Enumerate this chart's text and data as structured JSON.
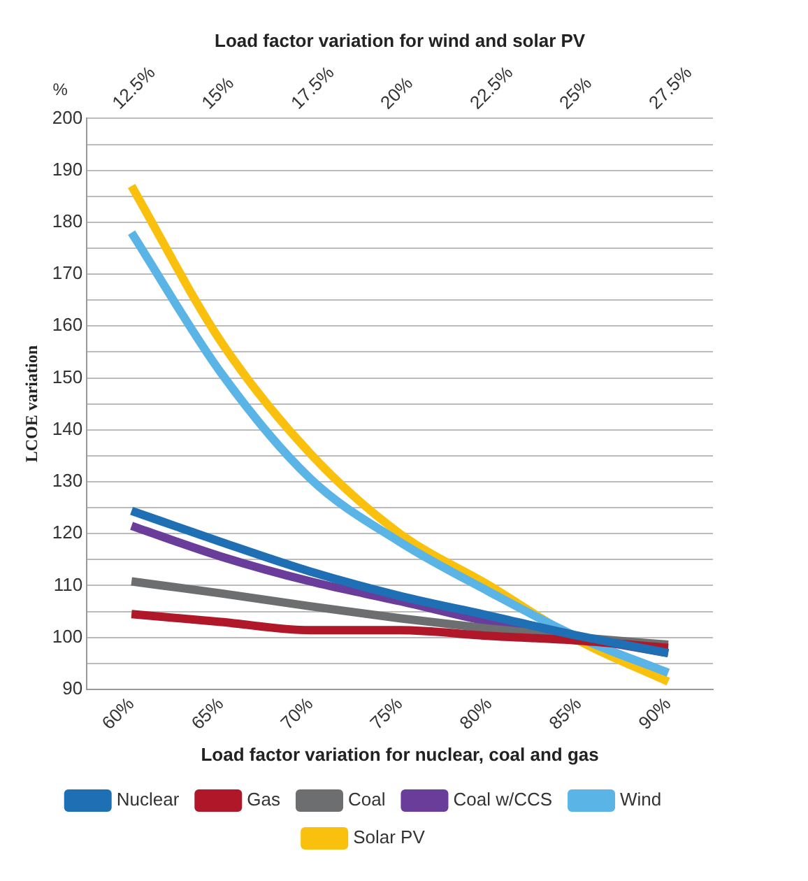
{
  "chart_data": {
    "type": "line",
    "x2label": "Load factor variation for wind and solar PV",
    "xlabel": "Load factor variation for nuclear, coal and gas",
    "ylabel": "LCOE variation",
    "annotations": [
      "%"
    ],
    "x": [
      60,
      65,
      70,
      75,
      80,
      85,
      90
    ],
    "xlim": [
      57.5,
      92.5
    ],
    "xticks": [
      {
        "value": 60,
        "label": "60%"
      },
      {
        "value": 65,
        "label": "65%"
      },
      {
        "value": 70,
        "label": "70%"
      },
      {
        "value": 75,
        "label": "75%"
      },
      {
        "value": 80,
        "label": "80%"
      },
      {
        "value": 85,
        "label": "85%"
      },
      {
        "value": 90,
        "label": "90%"
      }
    ],
    "x2lim": [
      11.25,
      28.75
    ],
    "x2ticks": [
      {
        "value": 12.5,
        "label": "12.5%"
      },
      {
        "value": 15,
        "label": "15%"
      },
      {
        "value": 17.5,
        "label": "17.5%"
      },
      {
        "value": 20,
        "label": "20%"
      },
      {
        "value": 22.5,
        "label": "22.5%"
      },
      {
        "value": 25,
        "label": "25%"
      },
      {
        "value": 27.5,
        "label": "27.5%"
      }
    ],
    "ylim": [
      90,
      200
    ],
    "yticks": [
      90,
      {
        "value": 95,
        "label": null
      },
      100,
      {
        "value": 105,
        "label": null
      },
      110,
      {
        "value": 115,
        "label": null
      },
      120,
      {
        "value": 125,
        "label": null
      },
      130,
      {
        "value": 135,
        "label": null
      },
      140,
      {
        "value": 145,
        "label": null
      },
      150,
      {
        "value": 155,
        "label": null
      },
      160,
      {
        "value": 165,
        "label": null
      },
      170,
      {
        "value": 175,
        "label": null
      },
      180,
      {
        "value": 185,
        "label": null
      },
      190,
      {
        "value": 195,
        "label": null
      },
      200
    ],
    "grid": "y",
    "legend": "bottom",
    "marker": "none",
    "line_style": "solid",
    "series": [
      {
        "name": "Nuclear",
        "color": "#1f6fb5",
        "values": [
          124.4,
          118.4,
          112.7,
          108,
          104.2,
          100.3,
          97
        ]
      },
      {
        "name": "Gas",
        "color": "#b0182a",
        "values": [
          104.5,
          103,
          101.4,
          101.4,
          100.3,
          99.4,
          98
        ]
      },
      {
        "name": "Coal",
        "color": "#6d6e70",
        "values": [
          110.8,
          108.5,
          106,
          103.7,
          101.7,
          100,
          98.6
        ]
      },
      {
        "name": "Coal w/CCS",
        "color": "#6a3d9a",
        "values": [
          121.5,
          115.6,
          110.8,
          107,
          103,
          100,
          97
        ]
      },
      {
        "name": "Wind",
        "color": "#5ab4e5",
        "axis": "x2",
        "x": [
          12.5,
          15,
          17.5,
          20,
          22.5,
          25,
          27.5
        ],
        "values": [
          178,
          151,
          130.6,
          118.4,
          108.8,
          100,
          93.2
        ]
      },
      {
        "name": "Solar PV",
        "color": "#f9c10e",
        "axis": "x2",
        "x": [
          12.5,
          15,
          17.5,
          20,
          22.5,
          25,
          27.5
        ],
        "values": [
          187,
          157,
          135.4,
          120,
          110,
          99.4,
          91.5
        ]
      }
    ]
  }
}
